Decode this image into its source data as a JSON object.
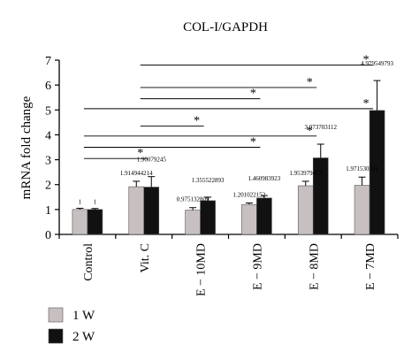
{
  "chart_data": {
    "type": "bar",
    "title": "COL-I/GAPDH",
    "ylabel": "mRNA fold change",
    "xlabel": "",
    "ylim": [
      0,
      7
    ],
    "yticks": [
      "0",
      "1",
      "2",
      "3",
      "4",
      "5",
      "6",
      "7"
    ],
    "categories": [
      "Control",
      "Vit. C",
      "E − 10MD",
      "E − 9MD",
      "E − 8MD",
      "E − 7MD"
    ],
    "series": [
      {
        "name": "1 W",
        "color": "#c8c0c0",
        "values": [
          1,
          1.914944214,
          0.975132809,
          1.201022152,
          1.953979453,
          1.971530316
        ],
        "errors": [
          0.05,
          0.22,
          0.1,
          0.06,
          0.18,
          0.33
        ],
        "value_labels": [
          "1",
          "1.914944214",
          "0.975132809",
          "1.201022152",
          "1.953979453",
          "1.971530316"
        ]
      },
      {
        "name": "2 W",
        "color": "#111111",
        "values": [
          1,
          1.90079245,
          1.355522893,
          1.460983923,
          3.073703112,
          4.979549793
        ],
        "errors": [
          0.04,
          0.42,
          0.14,
          0.1,
          0.55,
          1.2
        ],
        "value_labels": [
          "1",
          "1.90079245",
          "1.355522893",
          "1.460983923",
          "3.073703112",
          "4.979549793"
        ]
      }
    ],
    "significance": [
      {
        "from": "Vit. C",
        "to": "E − 7MD",
        "level": 6.8,
        "label": "*"
      },
      {
        "from": "Vit. C",
        "to": "E − 8MD",
        "level": 5.9,
        "label": "*"
      },
      {
        "from": "Vit. C",
        "to": "E − 9MD",
        "level": 5.45,
        "label": "*"
      },
      {
        "from": "Control",
        "to": "E − 7MD",
        "level": 5.05,
        "label": "*"
      },
      {
        "from": "Vit. C",
        "to": "E − 10MD",
        "level": 4.35,
        "label": "*"
      },
      {
        "from": "Control",
        "to": "E − 8MD",
        "level": 3.95,
        "label": "*"
      },
      {
        "from": "Control",
        "to": "E − 9MD",
        "level": 3.5,
        "label": "*"
      },
      {
        "from": "Control",
        "to": "Vit. C",
        "level": 3.05,
        "label": "*"
      }
    ],
    "legend": {
      "placement": "bottom-left",
      "items": [
        "1 W",
        "2 W"
      ]
    },
    "grid": false
  }
}
